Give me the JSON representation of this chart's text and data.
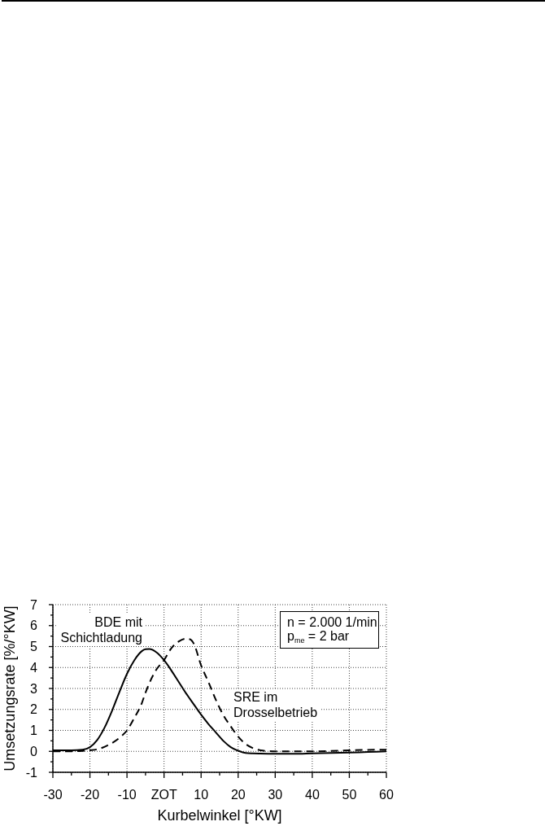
{
  "chart_data": {
    "type": "line",
    "xlabel": "Kurbelwinkel [°KW]",
    "ylabel": "Umsetzungsrate [%/°KW]",
    "annotations": [
      "n = 2.000 1/min",
      "p$_{me}$ = 2 bar"
    ],
    "x": [
      -30,
      -25,
      -22,
      -20,
      -18,
      -16,
      -14,
      -12,
      -10,
      -8,
      -6,
      -5,
      -4,
      -2,
      0,
      2,
      4,
      6,
      7,
      8,
      10,
      12,
      14,
      16,
      18,
      20,
      22,
      24,
      26,
      30,
      35,
      40,
      45,
      50,
      55,
      60
    ],
    "series": [
      {
        "name": "BDE mit\nSchichtladung",
        "color": "#000000",
        "line_style": "solid",
        "values": [
          0.05,
          0.05,
          0.08,
          0.2,
          0.55,
          1.15,
          1.95,
          2.85,
          3.7,
          4.35,
          4.78,
          4.87,
          4.88,
          4.72,
          4.35,
          3.85,
          3.3,
          2.75,
          2.5,
          2.25,
          1.75,
          1.3,
          0.9,
          0.5,
          0.2,
          0.03,
          -0.08,
          -0.1,
          -0.11,
          -0.12,
          -0.12,
          -0.1,
          -0.08,
          -0.06,
          -0.03,
          0.0
        ]
      },
      {
        "name": "SRE im\nDrosselbetrieb",
        "color": "#000000",
        "line_style": "dashed",
        "values": [
          0.0,
          0.0,
          0.02,
          0.05,
          0.1,
          0.22,
          0.4,
          0.65,
          1.0,
          1.6,
          2.3,
          2.8,
          3.24,
          3.92,
          4.35,
          4.93,
          5.25,
          5.38,
          5.35,
          5.15,
          4.1,
          3.3,
          2.45,
          1.73,
          1.19,
          0.7,
          0.35,
          0.15,
          0.05,
          0.0,
          0.0,
          0.0,
          0.02,
          0.05,
          0.07,
          0.08
        ]
      }
    ],
    "xlim": [
      -30,
      60
    ],
    "ylim": [
      -1,
      7
    ],
    "xticks": [
      -30,
      {
        "value": -25,
        "label": null
      },
      -20,
      {
        "value": -15,
        "label": null
      },
      -10,
      {
        "value": -5,
        "label": null
      },
      {
        "value": 0,
        "label": "ZOT"
      },
      {
        "value": 5,
        "label": null
      },
      10,
      {
        "value": 15,
        "label": null
      },
      20,
      {
        "value": 25,
        "label": null
      },
      30,
      {
        "value": 35,
        "label": null
      },
      40,
      {
        "value": 45,
        "label": null
      },
      50,
      {
        "value": 55,
        "label": null
      },
      60
    ],
    "yticks": [
      -1,
      {
        "value": -0.5,
        "label": null
      },
      0,
      {
        "value": 0.5,
        "label": null
      },
      1,
      {
        "value": 1.5,
        "label": null
      },
      2,
      {
        "value": 2.5,
        "label": null
      },
      3,
      {
        "value": 3.5,
        "label": null
      },
      4,
      {
        "value": 4.5,
        "label": null
      },
      5,
      {
        "value": 5.5,
        "label": null
      },
      6,
      {
        "value": 6.5,
        "label": null
      },
      7
    ],
    "grid": true
  }
}
